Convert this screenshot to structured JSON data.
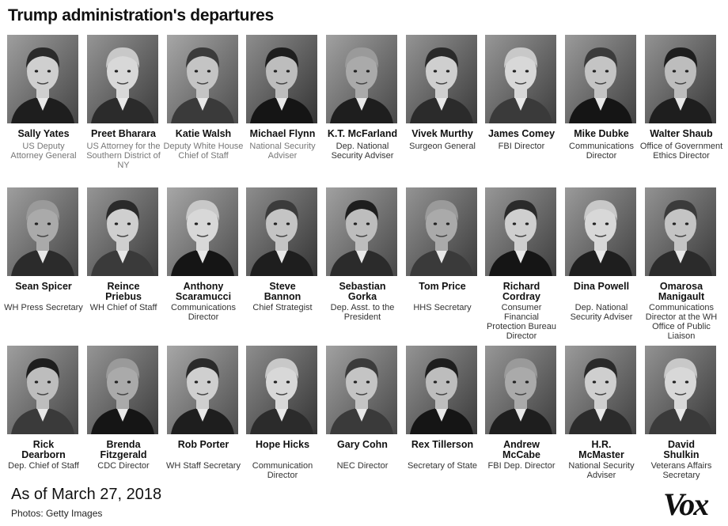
{
  "title": "Trump administration's departures",
  "footer": {
    "as_of": "As of March 27, 2018",
    "credit": "Photos: Getty Images",
    "logo": "Vox"
  },
  "people": [
    {
      "name": "Sally Yates",
      "role": "US Deputy Attorney General"
    },
    {
      "name": "Preet Bharara",
      "role": "US Attorney for the Southern District of NY"
    },
    {
      "name": "Katie Walsh",
      "role": "Deputy White House Chief of Staff"
    },
    {
      "name": "Michael Flynn",
      "role": "National Security Adviser"
    },
    {
      "name": "K.T. McFarland",
      "role": "Dep. National Security Adviser"
    },
    {
      "name": "Vivek Murthy",
      "role": "Surgeon General"
    },
    {
      "name": "James Comey",
      "role": "FBI Director"
    },
    {
      "name": "Mike Dubke",
      "role": "Communications Director"
    },
    {
      "name": "Walter Shaub",
      "role": "Office of Government Ethics Director"
    },
    {
      "name": "Sean Spicer",
      "role": "WH Press Secretary"
    },
    {
      "name": "Reince Priebus",
      "role": "WH Chief of Staff"
    },
    {
      "name": "Anthony Scaramucci",
      "role": "Communications Director"
    },
    {
      "name": "Steve Bannon",
      "role": "Chief Strategist"
    },
    {
      "name": "Sebastian Gorka",
      "role": "Dep. Asst. to the President"
    },
    {
      "name": "Tom Price",
      "role": "HHS Secretary"
    },
    {
      "name": "Richard Cordray",
      "role": "Consumer Financial Protection Bureau Director"
    },
    {
      "name": "Dina Powell",
      "role": "Dep. National Security Adviser"
    },
    {
      "name": "Omarosa Manigault",
      "role": "Communications Director at the WH Office of Public Liaison"
    },
    {
      "name": "Rick Dearborn",
      "role": "Dep. Chief of Staff"
    },
    {
      "name": "Brenda Fitzgerald",
      "role": "CDC Director"
    },
    {
      "name": "Rob Porter",
      "role": "WH Staff Secretary"
    },
    {
      "name": "Hope Hicks",
      "role": "Communication Director"
    },
    {
      "name": "Gary Cohn",
      "role": "NEC Director"
    },
    {
      "name": "Rex Tillerson",
      "role": "Secretary of State"
    },
    {
      "name": "Andrew McCabe",
      "role": "FBI Dep. Director"
    },
    {
      "name": "H.R. McMaster",
      "role": "National Security Adviser"
    },
    {
      "name": "David Shulkin",
      "role": "Veterans Affairs Secretary"
    }
  ]
}
